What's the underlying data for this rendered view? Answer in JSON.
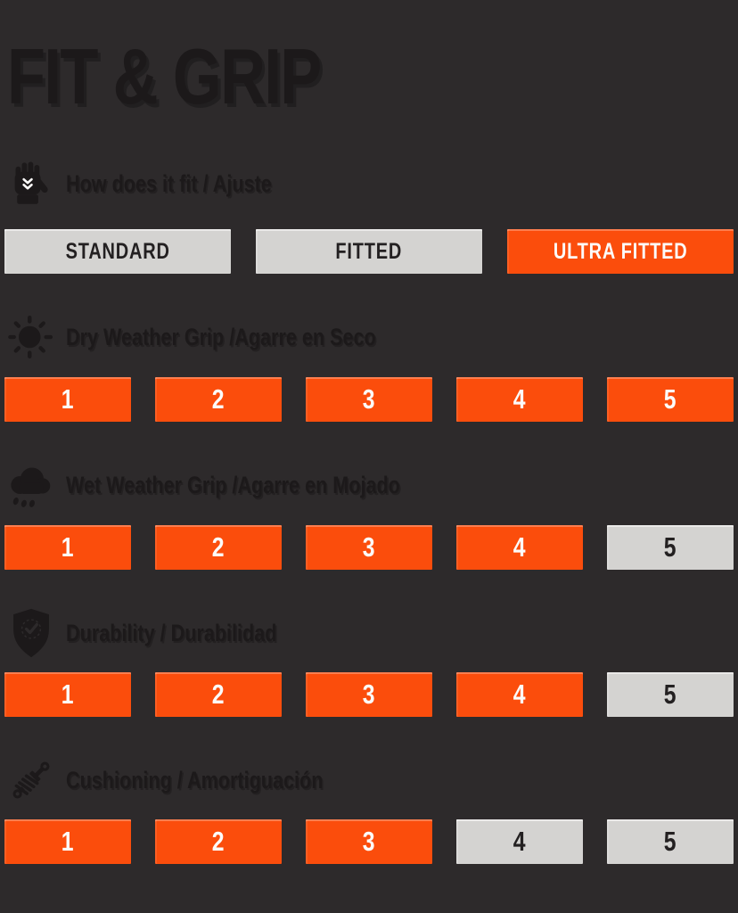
{
  "colors": {
    "background": "#2D2A2B",
    "accent_orange": "#FB4D0C",
    "box_gray": "#D4D3D1",
    "ink_dark": "#1C191A",
    "ink_on_gray": "#232021",
    "ink_on_orange": "#FCFBFA"
  },
  "title": "FIT & GRIP",
  "sections": [
    {
      "id": "fit",
      "icon": "goalkeeper-glove-icon",
      "label": "How does it fit / Ajuste",
      "type": "options",
      "options": [
        {
          "label": "STANDARD",
          "selected": false
        },
        {
          "label": "FITTED",
          "selected": false
        },
        {
          "label": "ULTRA FITTED",
          "selected": true
        }
      ]
    },
    {
      "id": "dry-grip",
      "icon": "sun-icon",
      "label": "Dry Weather Grip /Agarre en Seco",
      "type": "scale",
      "scale_max": 5,
      "value": 5
    },
    {
      "id": "wet-grip",
      "icon": "rain-cloud-icon",
      "label": "Wet Weather Grip /Agarre en Mojado",
      "type": "scale",
      "scale_max": 5,
      "value": 4
    },
    {
      "id": "durability",
      "icon": "shield-check-icon",
      "label": "Durability / Durabilidad",
      "type": "scale",
      "scale_max": 5,
      "value": 4
    },
    {
      "id": "cushioning",
      "icon": "shock-absorber-icon",
      "label": "Cushioning / Amortiguación",
      "type": "scale",
      "scale_max": 5,
      "value": 3
    }
  ],
  "chart_data": {
    "type": "table",
    "title": "FIT & GRIP",
    "fit": {
      "label": "How does it fit / Ajuste",
      "options": [
        "STANDARD",
        "FITTED",
        "ULTRA FITTED"
      ],
      "selected": "ULTRA FITTED"
    },
    "metrics": [
      {
        "label": "Dry Weather Grip /Agarre en Seco",
        "value": 5,
        "max": 5
      },
      {
        "label": "Wet Weather Grip /Agarre en Mojado",
        "value": 4,
        "max": 5
      },
      {
        "label": "Durability / Durabilidad",
        "value": 4,
        "max": 5
      },
      {
        "label": "Cushioning / Amortiguación",
        "value": 3,
        "max": 5
      }
    ],
    "legend": "orange box = achieved level, gray box = not achieved"
  }
}
